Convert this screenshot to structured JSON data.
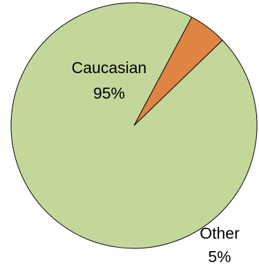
{
  "chart_data": {
    "type": "pie",
    "title": "",
    "slices": [
      {
        "label": "Caucasian",
        "value": 95,
        "value_label": "95%",
        "color": "#C4D79B"
      },
      {
        "label": "Other",
        "value": 5,
        "value_label": "5%",
        "color": "#E08443"
      }
    ],
    "start": "Other slice begins just clockwise of 12 o'clock, boundary toward lower right"
  }
}
